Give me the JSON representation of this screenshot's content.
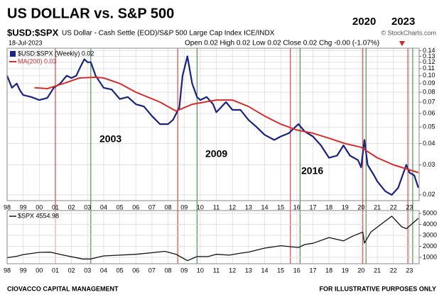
{
  "header": {
    "title": "US DOLLAR vs. S&P 500",
    "marks": [
      "2020",
      "2023"
    ],
    "symbol": "$USD:$SPX",
    "description": "US Dollar - Cash Settle (EOD)/S&P 500 Large Cap Index ICE/INDX",
    "source": "© StockCharts.com",
    "date": "18-Jul-2023",
    "quote": "Open 0.02 High 0.02 Low 0.02 Close 0.02 Chg -0.00 (-1.07%)"
  },
  "annotations": [
    "2003",
    "2009",
    "2016"
  ],
  "footer": {
    "left": "CIOVACCO CAPITAL MANAGEMENT",
    "right": "FOR ILLUSTRATIVE PURPOSES ONLY"
  },
  "chart_data": [
    {
      "type": "line",
      "log_y": true,
      "grid": true,
      "xlim": [
        1998,
        2023.6
      ],
      "ylim": [
        0.0185,
        0.145
      ],
      "xticks": [
        {
          "value": 1998,
          "label": "98"
        },
        {
          "value": 1999,
          "label": "99"
        },
        {
          "value": 2000,
          "label": "00"
        },
        {
          "value": 2001,
          "label": "01"
        },
        {
          "value": 2002,
          "label": "02"
        },
        {
          "value": 2003,
          "label": "03"
        },
        {
          "value": 2004,
          "label": "04"
        },
        {
          "value": 2005,
          "label": "05"
        },
        {
          "value": 2006,
          "label": "06"
        },
        {
          "value": 2007,
          "label": "07"
        },
        {
          "value": 2008,
          "label": "08"
        },
        {
          "value": 2009,
          "label": "09"
        },
        {
          "value": 2010,
          "label": "10"
        },
        {
          "value": 2011,
          "label": "11"
        },
        {
          "value": 2012,
          "label": "12"
        },
        {
          "value": 2013,
          "label": "13"
        },
        {
          "value": 2014,
          "label": "14"
        },
        {
          "value": 2015,
          "label": "15"
        },
        {
          "value": 2016,
          "label": "16"
        },
        {
          "value": 2017,
          "label": "17"
        },
        {
          "value": 2018,
          "label": "18"
        },
        {
          "value": 2019,
          "label": "19"
        },
        {
          "value": 2020,
          "label": "20"
        },
        {
          "value": 2021,
          "label": "21"
        },
        {
          "value": 2022,
          "label": "22"
        },
        {
          "value": 2023,
          "label": "23"
        }
      ],
      "yticks": [
        0.14,
        0.13,
        0.12,
        0.11,
        {
          "value": 0.1,
          "label": "0.10"
        },
        0.09,
        0.08,
        0.07,
        0.06,
        0.05,
        0.04,
        0.03,
        0.02
      ],
      "series": [
        {
          "name": "$USD:$SPX (Weekly) 0.02",
          "color": "#1a237e",
          "x": [
            1998.0,
            1998.3,
            1998.6,
            1998.8,
            1999.0,
            1999.5,
            2000.0,
            2000.5,
            2000.9,
            2001.3,
            2001.7,
            2002.0,
            2002.3,
            2002.5,
            2002.8,
            2003.0,
            2003.2,
            2003.5,
            2004.0,
            2004.5,
            2005.0,
            2005.5,
            2006.0,
            2006.5,
            2007.0,
            2007.5,
            2008.0,
            2008.3,
            2008.7,
            2008.9,
            2009.2,
            2009.5,
            2009.8,
            2010.0,
            2010.4,
            2010.8,
            2011.0,
            2011.6,
            2012.0,
            2012.5,
            2013.0,
            2013.5,
            2014.0,
            2014.6,
            2015.0,
            2015.5,
            2015.8,
            2016.1,
            2016.5,
            2017.0,
            2017.5,
            2018.0,
            2018.5,
            2018.9,
            2019.3,
            2019.8,
            2020.0,
            2020.2,
            2020.4,
            2020.8,
            2021.0,
            2021.5,
            2021.9,
            2022.3,
            2022.8,
            2023.0,
            2023.3,
            2023.55
          ],
          "values": [
            0.1,
            0.085,
            0.09,
            0.082,
            0.077,
            0.075,
            0.072,
            0.074,
            0.085,
            0.09,
            0.1,
            0.097,
            0.1,
            0.11,
            0.125,
            0.12,
            0.12,
            0.1,
            0.085,
            0.083,
            0.073,
            0.075,
            0.068,
            0.066,
            0.058,
            0.052,
            0.052,
            0.055,
            0.065,
            0.1,
            0.13,
            0.09,
            0.075,
            0.072,
            0.075,
            0.068,
            0.061,
            0.07,
            0.063,
            0.063,
            0.055,
            0.05,
            0.045,
            0.042,
            0.044,
            0.046,
            0.049,
            0.052,
            0.047,
            0.044,
            0.039,
            0.033,
            0.034,
            0.039,
            0.034,
            0.032,
            0.029,
            0.042,
            0.03,
            0.026,
            0.024,
            0.021,
            0.02,
            0.022,
            0.03,
            0.027,
            0.026,
            0.022
          ]
        },
        {
          "name": "MA(200) 0.03",
          "color": "#d32f2f",
          "x": [
            1999.7,
            2000.5,
            2001.5,
            2002.5,
            2003.5,
            2004.0,
            2005.0,
            2006.0,
            2007.5,
            2008.5,
            2009.5,
            2011.0,
            2012.0,
            2013.0,
            2014.0,
            2015.0,
            2016.0,
            2017.0,
            2018.0,
            2019.0,
            2020.0,
            2021.0,
            2022.0,
            2023.55
          ],
          "values": [
            0.085,
            0.084,
            0.09,
            0.097,
            0.098,
            0.097,
            0.09,
            0.08,
            0.07,
            0.062,
            0.068,
            0.072,
            0.072,
            0.066,
            0.058,
            0.052,
            0.048,
            0.046,
            0.043,
            0.04,
            0.038,
            0.033,
            0.03,
            0.027
          ]
        }
      ],
      "vlines": [
        {
          "x": 2001.0,
          "color": "#c62828"
        },
        {
          "x": 2003.2,
          "color": "#2e7d32"
        },
        {
          "x": 2008.6,
          "color": "#c62828"
        },
        {
          "x": 2009.8,
          "color": "#2e7d32"
        },
        {
          "x": 2015.6,
          "color": "#c62828"
        },
        {
          "x": 2016.2,
          "color": "#2e7d32"
        },
        {
          "x": 2020.1,
          "color": "#c62828"
        },
        {
          "x": 2020.3,
          "color": "#2e7d32"
        },
        {
          "x": 2022.9,
          "color": "#c62828"
        },
        {
          "x": 2023.2,
          "color": "#2e7d32"
        }
      ]
    },
    {
      "type": "line",
      "log_y": false,
      "grid": true,
      "xlim": [
        1998,
        2023.6
      ],
      "ylim": [
        420,
        5260
      ],
      "yticks": [
        5000,
        4000,
        3000,
        2000,
        1000
      ],
      "series": [
        {
          "name": "$SPX 4554.98",
          "color": "#111111",
          "x": [
            1998.0,
            1998.6,
            1999.0,
            2000.0,
            2000.7,
            2001.5,
            2002.7,
            2003.2,
            2004.0,
            2005.0,
            2006.0,
            2007.0,
            2007.8,
            2008.5,
            2009.2,
            2009.8,
            2010.5,
            2011.0,
            2011.8,
            2012.5,
            2013.0,
            2014.0,
            2015.0,
            2016.1,
            2016.5,
            2017.0,
            2018.0,
            2018.9,
            2019.5,
            2020.1,
            2020.2,
            2020.6,
            2021.0,
            2021.9,
            2022.5,
            2022.8,
            2023.2,
            2023.55
          ],
          "values": [
            970,
            1100,
            1250,
            1450,
            1470,
            1200,
            850,
            850,
            1130,
            1200,
            1280,
            1420,
            1550,
            1280,
            700,
            1070,
            1080,
            1280,
            1200,
            1380,
            1480,
            1840,
            2060,
            1900,
            2170,
            2280,
            2800,
            2500,
            2950,
            3300,
            2300,
            3300,
            3750,
            4750,
            3800,
            3600,
            4100,
            4555
          ]
        }
      ]
    }
  ]
}
